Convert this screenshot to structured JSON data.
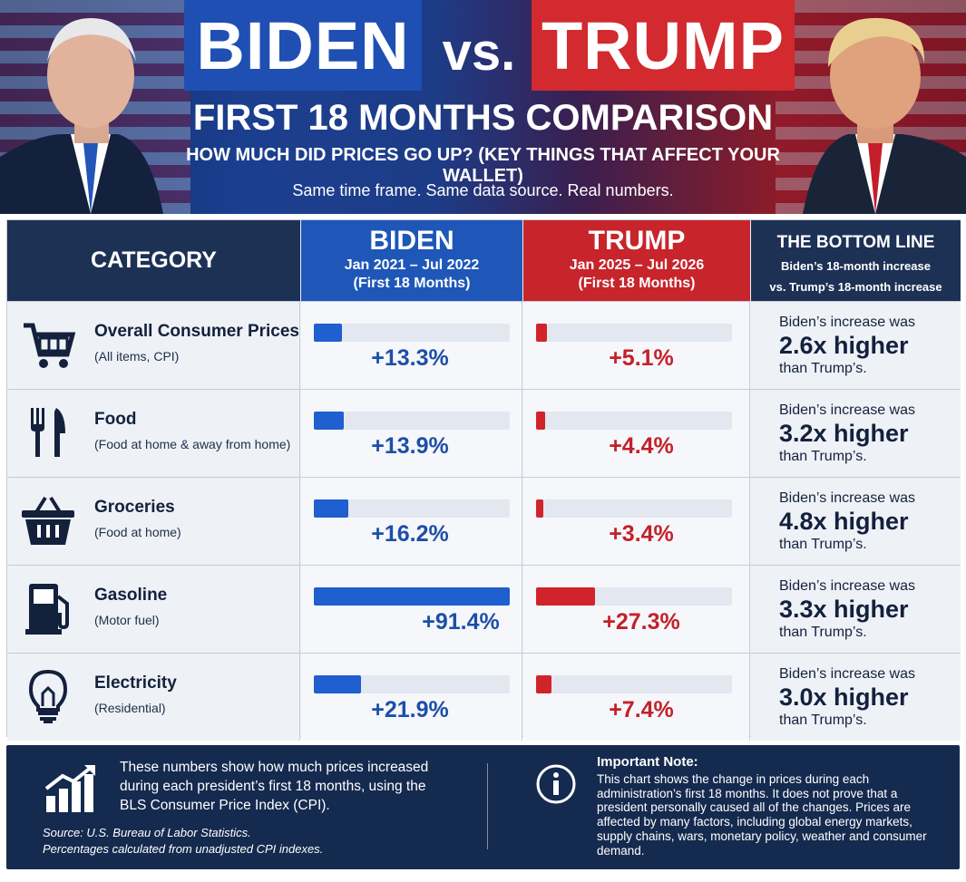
{
  "header": {
    "title_left": "BIDEN",
    "title_vs": "vs.",
    "title_right": "TRUMP",
    "subtitle": "FIRST 18 MONTHS COMPARISON",
    "question": "HOW MUCH DID PRICES GO UP?  (KEY THINGS THAT AFFECT YOUR WALLET)",
    "tagline": "Same time frame. Same data source. Real numbers."
  },
  "table": {
    "col_category": "CATEGORY",
    "col_biden": {
      "name": "BIDEN",
      "period": "Jan 2021 – Jul 2022",
      "note": "(First 18 Months)"
    },
    "col_trump": {
      "name": "TRUMP",
      "period": "Jan 2025 – Jul 2026",
      "note": "(First 18 Months)"
    },
    "col_bottom": {
      "name": "THE BOTTOM LINE",
      "line1": "Biden’s 18-month increase",
      "line2": "vs. Trump’s 18-month increase"
    },
    "rows": [
      {
        "icon": "shopping-cart-icon",
        "name": "Overall Consumer Prices",
        "sub": "(All items, CPI)",
        "biden": "+13.3%",
        "trump": "+5.1%",
        "bl1": "Biden’s increase was",
        "bl2": "2.6x higher",
        "bl3": "than Trump’s."
      },
      {
        "icon": "fork-knife-icon",
        "name": "Food",
        "sub": "(Food at home & away from home)",
        "biden": "+13.9%",
        "trump": "+4.4%",
        "bl1": "Biden’s increase was",
        "bl2": "3.2x higher",
        "bl3": "than Trump’s."
      },
      {
        "icon": "basket-icon",
        "name": "Groceries",
        "sub": "(Food at home)",
        "biden": "+16.2%",
        "trump": "+3.4%",
        "bl1": "Biden’s increase was",
        "bl2": "4.8x higher",
        "bl3": "than Trump’s."
      },
      {
        "icon": "fuel-pump-icon",
        "name": "Gasoline",
        "sub": "(Motor fuel)",
        "biden": "+91.4%",
        "trump": "+27.3%",
        "bl1": "Biden’s increase was",
        "bl2": "3.3x higher",
        "bl3": "than Trump’s."
      },
      {
        "icon": "light-bulb-icon",
        "name": "Electricity",
        "sub": "(Residential)",
        "biden": "+21.9%",
        "trump": "+7.4%",
        "bl1": "Biden’s increase was",
        "bl2": "3.0x higher",
        "bl3": "than Trump’s."
      }
    ]
  },
  "chart_data": {
    "type": "bar",
    "categories": [
      "Overall Consumer Prices",
      "Food",
      "Groceries",
      "Gasoline",
      "Electricity"
    ],
    "series": [
      {
        "name": "BIDEN",
        "values": [
          13.3,
          13.9,
          16.2,
          91.4,
          21.9
        ]
      },
      {
        "name": "TRUMP",
        "values": [
          5.1,
          4.4,
          3.4,
          27.3,
          7.4
        ]
      }
    ],
    "xlim": [
      0,
      91.4
    ],
    "colors": {
      "BIDEN": "#1f5fcf",
      "TRUMP": "#d1242a"
    }
  },
  "footer": {
    "summary": "These numbers show how much prices increased during each president’s first 18 months, using the BLS Consumer Price Index (CPI).",
    "source1": "Source: U.S. Bureau of Labor Statistics.",
    "source2": "Percentages calculated from unadjusted CPI indexes.",
    "note_title": "Important Note:",
    "note_body": "This chart shows the change in prices during each administration’s first 18 months. It does not prove that a president personally caused all of the changes. Prices are affected by many factors, including global energy markets, supply chains, wars, monetary policy, weather and consumer demand."
  },
  "colors": {
    "biden_blue": "#1f57b8",
    "trump_red": "#c7242b",
    "navy": "#1d3155"
  }
}
